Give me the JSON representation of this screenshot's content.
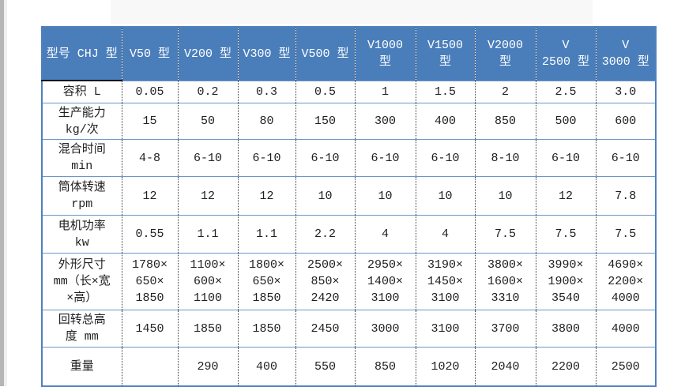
{
  "colors": {
    "header_bg": "#4a7ebb",
    "outer_border": "#4f81bd",
    "row_border": "#6d96c8",
    "dotted_separator": "#3c3c3c",
    "header_text": "#ffffff",
    "body_text": "#1f1f1f"
  },
  "table": {
    "header": [
      "型号 CHJ 型",
      "V50 型",
      "V200 型",
      "V300 型",
      "V500 型",
      "V1000\n型",
      "V1500\n型",
      "V2000\n型",
      "V\n2500 型",
      "V\n3000 型"
    ],
    "rows": [
      {
        "label": "容积 L",
        "values": [
          "0.05",
          "0.2",
          "0.3",
          "0.5",
          "1",
          "1.5",
          "2",
          "2.5",
          "3.0"
        ]
      },
      {
        "label": "生产能力\nkg/次",
        "values": [
          "15",
          "50",
          "80",
          "150",
          "300",
          "400",
          "850",
          "500",
          "600"
        ]
      },
      {
        "label": "混合时间\nmin",
        "values": [
          "4-8",
          "6-10",
          "6-10",
          "6-10",
          "6-10",
          "6-10",
          "8-10",
          "6-10",
          "6-10"
        ]
      },
      {
        "label": "筒体转速\nrpm",
        "values": [
          "12",
          "12",
          "12",
          "10",
          "10",
          "10",
          "10",
          "12",
          "7.8"
        ]
      },
      {
        "label": "电机功率\nkw",
        "values": [
          "0.55",
          "1.1",
          "1.1",
          "2.2",
          "4",
          "4",
          "7.5",
          "7.5",
          "7.5"
        ]
      },
      {
        "label": "外形尺寸\nmm（长×宽\n×高）",
        "values": [
          "1780×\n650×\n1850",
          "1100×\n600×\n1100",
          "1800×\n650×\n1850",
          "2500×\n850×\n2420",
          "2950×\n1400×\n3100",
          "3190×\n1450×\n3100",
          "3800×\n1600×\n3310",
          "3990×\n1900×\n3540",
          "4690×\n2200×\n4000"
        ]
      },
      {
        "label": "回转总高\n度 mm",
        "values": [
          "1450",
          "1850",
          "1850",
          "2450",
          "3000",
          "3100",
          "3700",
          "3800",
          "4000"
        ]
      },
      {
        "label": "重量",
        "values": [
          "",
          "290",
          "400",
          "550",
          "850",
          "1020",
          "2040",
          "2200",
          "2500"
        ]
      }
    ]
  }
}
